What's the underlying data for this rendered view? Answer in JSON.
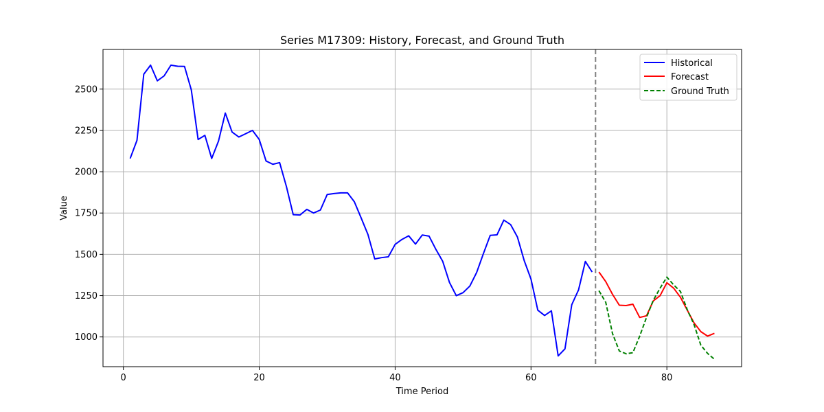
{
  "chart_data": {
    "type": "line",
    "title": "Series M17309: History, Forecast, and Ground Truth",
    "xlabel": "Time Period",
    "ylabel": "Value",
    "xlim": [
      -3,
      91
    ],
    "ylim": [
      820,
      2740
    ],
    "xticks": [
      0,
      20,
      40,
      60,
      80
    ],
    "yticks": [
      1000,
      1250,
      1500,
      1750,
      2000,
      2250,
      2500
    ],
    "grid": true,
    "legend_position": "top-right",
    "forecast_start_marker": 69.5,
    "series": [
      {
        "name": "Historical",
        "color": "#0000ff",
        "style": "solid",
        "x": [
          1,
          2,
          3,
          4,
          5,
          6,
          7,
          8,
          9,
          10,
          11,
          12,
          13,
          14,
          15,
          16,
          17,
          18,
          19,
          20,
          21,
          22,
          23,
          24,
          25,
          26,
          27,
          28,
          29,
          30,
          31,
          32,
          33,
          34,
          35,
          36,
          37,
          38,
          39,
          40,
          41,
          42,
          43,
          44,
          45,
          46,
          47,
          48,
          49,
          50,
          51,
          52,
          53,
          54,
          55,
          56,
          57,
          58,
          59,
          60,
          61,
          62,
          63,
          64,
          65,
          66,
          67,
          68,
          69
        ],
        "values": [
          2080,
          2190,
          2590,
          2645,
          2550,
          2580,
          2645,
          2638,
          2637,
          2495,
          2195,
          2220,
          2080,
          2185,
          2355,
          2240,
          2210,
          2230,
          2250,
          2195,
          2065,
          2045,
          2055,
          1910,
          1740,
          1738,
          1772,
          1750,
          1768,
          1862,
          1868,
          1872,
          1872,
          1818,
          1720,
          1620,
          1472,
          1480,
          1485,
          1560,
          1590,
          1612,
          1562,
          1617,
          1610,
          1530,
          1458,
          1330,
          1250,
          1268,
          1308,
          1390,
          1505,
          1615,
          1618,
          1707,
          1680,
          1605,
          1462,
          1350,
          1162,
          1130,
          1158,
          885,
          928,
          1195,
          1285,
          1457,
          1393
        ]
      },
      {
        "name": "Forecast",
        "color": "#ff0000",
        "style": "solid",
        "x": [
          70,
          71,
          72,
          73,
          74,
          75,
          76,
          77,
          78,
          79,
          80,
          81,
          82,
          83,
          84,
          85,
          86,
          87
        ],
        "values": [
          1393,
          1335,
          1258,
          1192,
          1190,
          1198,
          1118,
          1128,
          1218,
          1250,
          1328,
          1295,
          1240,
          1162,
          1085,
          1032,
          1005,
          1022
        ]
      },
      {
        "name": "Ground Truth",
        "color": "#008000",
        "style": "dashed",
        "x": [
          70,
          71,
          72,
          73,
          74,
          75,
          76,
          77,
          78,
          79,
          80,
          81,
          82,
          83,
          84,
          85,
          86,
          87
        ],
        "values": [
          1280,
          1210,
          1020,
          915,
          898,
          905,
          1005,
          1118,
          1222,
          1295,
          1362,
          1315,
          1275,
          1165,
          1075,
          950,
          900,
          865
        ]
      }
    ]
  }
}
